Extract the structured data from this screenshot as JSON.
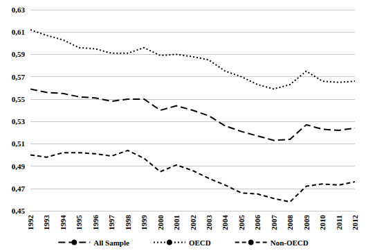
{
  "chart_data": {
    "type": "line",
    "categories": [
      "1992",
      "1993",
      "1994",
      "1995",
      "1996",
      "1997",
      "1998",
      "1999",
      "2000",
      "2001",
      "2002",
      "2003",
      "2004",
      "2005",
      "2006",
      "2007",
      "2008",
      "2009",
      "2010",
      "2011",
      "2012"
    ],
    "series": [
      {
        "name": "All Sample",
        "color": "#000000",
        "line_style": "longdash",
        "values": [
          0.559,
          0.556,
          0.555,
          0.552,
          0.551,
          0.548,
          0.55,
          0.55,
          0.54,
          0.544,
          0.54,
          0.535,
          0.526,
          0.521,
          0.517,
          0.513,
          0.514,
          0.527,
          0.523,
          0.522,
          0.524
        ]
      },
      {
        "name": "OECD",
        "color": "#000000",
        "line_style": "dotted",
        "values": [
          0.612,
          0.607,
          0.603,
          0.596,
          0.595,
          0.591,
          0.591,
          0.596,
          0.589,
          0.59,
          0.588,
          0.585,
          0.575,
          0.57,
          0.563,
          0.559,
          0.563,
          0.575,
          0.566,
          0.565,
          0.566
        ]
      },
      {
        "name": "Non-OECD",
        "color": "#000000",
        "line_style": "dashed",
        "values": [
          0.5,
          0.498,
          0.502,
          0.502,
          0.501,
          0.499,
          0.504,
          0.497,
          0.485,
          0.491,
          0.486,
          0.479,
          0.473,
          0.466,
          0.465,
          0.461,
          0.458,
          0.472,
          0.474,
          0.473,
          0.476
        ]
      }
    ],
    "ylim": [
      0.45,
      0.63
    ],
    "yticks": [
      {
        "value": 0.45,
        "label": "0,45"
      },
      {
        "value": 0.47,
        "label": "0,47"
      },
      {
        "value": 0.49,
        "label": "0,49"
      },
      {
        "value": 0.51,
        "label": "0,51"
      },
      {
        "value": 0.53,
        "label": "0,53"
      },
      {
        "value": 0.55,
        "label": "0,55"
      },
      {
        "value": 0.57,
        "label": "0,57"
      },
      {
        "value": 0.59,
        "label": "0,59"
      },
      {
        "value": 0.61,
        "label": "0,61"
      },
      {
        "value": 0.63,
        "label": "0,63"
      }
    ],
    "grid": true,
    "legend": "bottom"
  }
}
